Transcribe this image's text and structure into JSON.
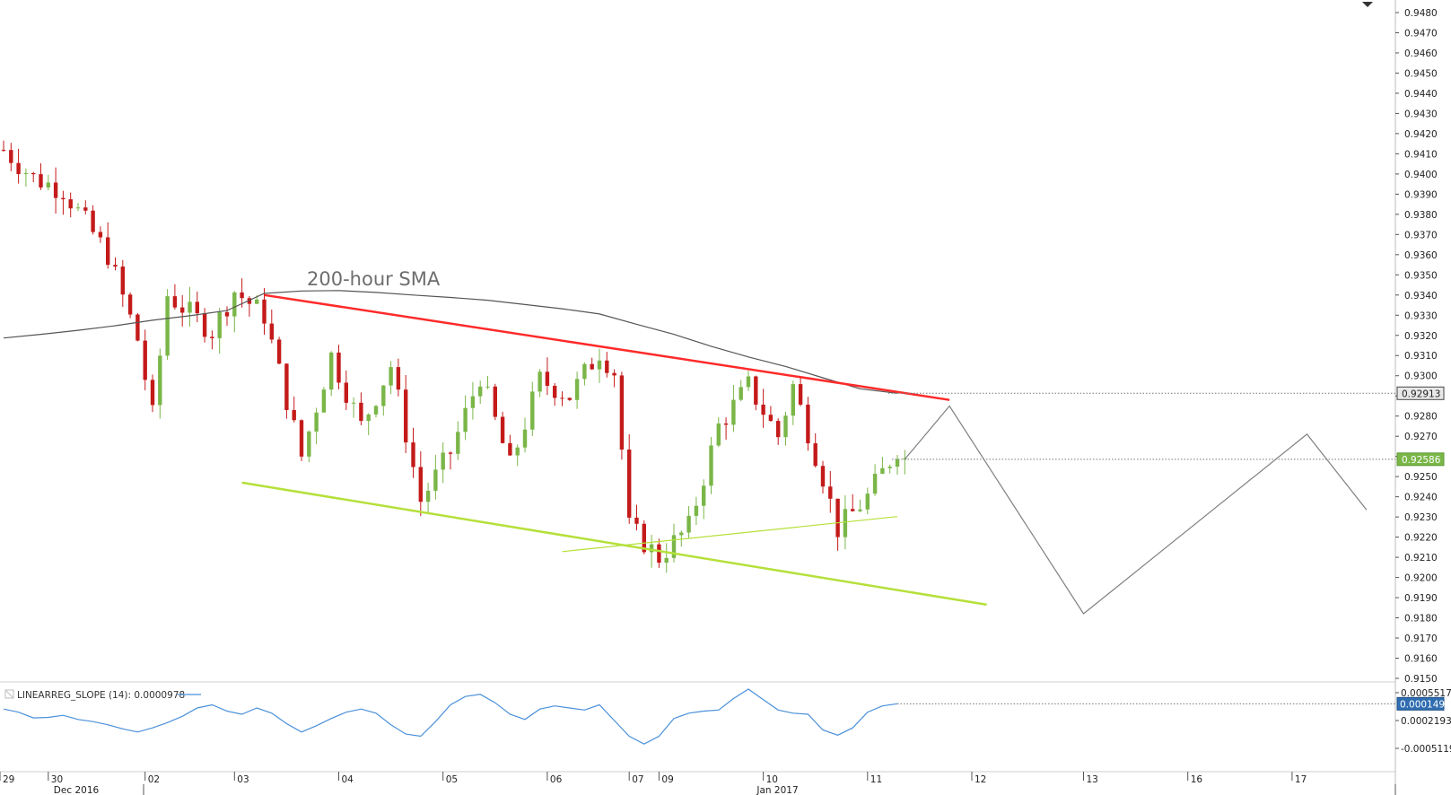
{
  "chart_data": {
    "type": "candlestick",
    "symbol": "",
    "price_axis": {
      "ylim": [
        0.9148,
        0.9488
      ],
      "ticks": [
        "0.9480",
        "0.9470",
        "0.9460",
        "0.9450",
        "0.9440",
        "0.9430",
        "0.9420",
        "0.9410",
        "0.9400",
        "0.9390",
        "0.9380",
        "0.9370",
        "0.9360",
        "0.9350",
        "0.9340",
        "0.9330",
        "0.9320",
        "0.9310",
        "0.9300",
        "0.9290",
        "0.9280",
        "0.9270",
        "0.9260",
        "0.9250",
        "0.9240",
        "0.9230",
        "0.9220",
        "0.9210",
        "0.9200",
        "0.9190",
        "0.9180",
        "0.9170",
        "0.9160",
        "0.9150"
      ],
      "tags": [
        {
          "text": "0.92913",
          "value": 0.92913,
          "color": "#e8e8e8",
          "text_color": "#222222"
        },
        {
          "text": "0.92586",
          "value": 0.92586,
          "color": "#7ab648",
          "text_color": "#ffffff"
        }
      ]
    },
    "time_axis": {
      "ticks": [
        {
          "label": "29",
          "bar": 0
        },
        {
          "label": "30",
          "bar": 6
        },
        {
          "label": "02",
          "bar": 19
        },
        {
          "label": "03",
          "bar": 31
        },
        {
          "label": "04",
          "bar": 45
        },
        {
          "label": "05",
          "bar": 59
        },
        {
          "label": "06",
          "bar": 73
        },
        {
          "label": "07",
          "bar": 84
        },
        {
          "label": "09",
          "bar": 88
        },
        {
          "label": "10",
          "bar": 102
        },
        {
          "label": "11",
          "bar": 116
        },
        {
          "label": "12",
          "bar": 130
        },
        {
          "label": "13",
          "bar": 145
        },
        {
          "label": "16",
          "bar": 159
        },
        {
          "label": "17",
          "bar": 173
        }
      ],
      "months": [
        {
          "label": "Dec 2016",
          "bar": 6
        },
        {
          "label": "Jan 2017",
          "bar": 98
        }
      ],
      "bar_spacing_bars_per_day": 14
    },
    "annotations": {
      "sma_label": "200-hour SMA"
    },
    "candles": [],
    "series": {
      "sma_200": [
        [
          0,
          0.93187
        ],
        [
          5,
          0.93205
        ],
        [
          10,
          0.93225
        ],
        [
          15,
          0.93248
        ],
        [
          20,
          0.93275
        ],
        [
          25,
          0.93297
        ],
        [
          30,
          0.93323
        ],
        [
          35,
          0.93408
        ],
        [
          40,
          0.9342
        ],
        [
          45,
          0.93422
        ],
        [
          50,
          0.93413
        ],
        [
          55,
          0.934
        ],
        [
          60,
          0.93388
        ],
        [
          65,
          0.93374
        ],
        [
          70,
          0.93353
        ],
        [
          75,
          0.93332
        ],
        [
          80,
          0.93306
        ],
        [
          85,
          0.93255
        ],
        [
          90,
          0.93205
        ],
        [
          95,
          0.93146
        ],
        [
          100,
          0.93093
        ],
        [
          105,
          0.93046
        ],
        [
          110,
          0.9299
        ],
        [
          115,
          0.92935
        ],
        [
          120,
          0.92913
        ]
      ],
      "resistance_line": [
        [
          35,
          0.934
        ],
        [
          127,
          0.9288
        ]
      ],
      "support_line": [
        [
          32,
          0.9247
        ],
        [
          132,
          0.91865
        ]
      ],
      "inner_support_line": [
        [
          75,
          0.92128
        ],
        [
          120,
          0.92302
        ]
      ],
      "projection": [
        [
          121,
          0.92586
        ],
        [
          127,
          0.9285
        ],
        [
          145,
          0.9182
        ],
        [
          175,
          0.9271
        ],
        [
          183,
          0.92335
        ]
      ]
    },
    "indicator": {
      "label": "LINEARREG_SLOPE (14): 0.0000978",
      "ticks": [
        "0.0005517",
        "0.0002193",
        "-0.0005119"
      ],
      "current_tag": "0.0001491",
      "ylim": [
        -0.0006,
        0.0006
      ],
      "values": [
        [
          0,
          0.00012
        ],
        [
          2,
          6e-05
        ],
        [
          4,
          -5e-05
        ],
        [
          6,
          -4e-05
        ],
        [
          8,
          0.0
        ],
        [
          10,
          -8e-05
        ],
        [
          12,
          -0.00012
        ],
        [
          14,
          -0.00018
        ],
        [
          16,
          -0.00026
        ],
        [
          18,
          -0.00032
        ],
        [
          20,
          -0.00024
        ],
        [
          22,
          -0.00014
        ],
        [
          24,
          -2e-05
        ],
        [
          26,
          0.00014
        ],
        [
          28,
          0.0002
        ],
        [
          30,
          8e-05
        ],
        [
          32,
          2e-05
        ],
        [
          34,
          0.00014
        ],
        [
          36,
          4e-05
        ],
        [
          38,
          -0.00016
        ],
        [
          40,
          -0.00032
        ],
        [
          42,
          -0.0002
        ],
        [
          44,
          -6e-05
        ],
        [
          46,
          6e-05
        ],
        [
          48,
          0.00012
        ],
        [
          50,
          4e-05
        ],
        [
          52,
          -0.00018
        ],
        [
          54,
          -0.00036
        ],
        [
          56,
          -0.0004
        ],
        [
          58,
          -0.00012
        ],
        [
          60,
          0.0002
        ],
        [
          62,
          0.00036
        ],
        [
          64,
          0.0004
        ],
        [
          66,
          0.00024
        ],
        [
          68,
          2e-05
        ],
        [
          70,
          -8e-05
        ],
        [
          72,
          0.00012
        ],
        [
          74,
          0.00018
        ],
        [
          76,
          0.00014
        ],
        [
          78,
          0.0001
        ],
        [
          80,
          0.0002
        ],
        [
          82,
          -0.0001
        ],
        [
          84,
          -0.0004
        ],
        [
          86,
          -0.00055
        ],
        [
          88,
          -0.0004
        ],
        [
          90,
          -6e-05
        ],
        [
          92,
          4e-05
        ],
        [
          94,
          8e-05
        ],
        [
          96,
          0.0001
        ],
        [
          98,
          0.00032
        ],
        [
          100,
          0.0005
        ],
        [
          102,
          0.0003
        ],
        [
          104,
          0.0001
        ],
        [
          106,
          4e-05
        ],
        [
          108,
          2e-05
        ],
        [
          110,
          -0.00028
        ],
        [
          112,
          -0.00038
        ],
        [
          114,
          -0.00024
        ],
        [
          116,
          6e-05
        ],
        [
          118,
          0.00018
        ],
        [
          120,
          0.00022
        ]
      ]
    }
  },
  "colors": {
    "bull": "#7ab648",
    "bear": "#c41a1a",
    "sma": "#555555",
    "resistance": "#ff2a2a",
    "support": "#b5e03a",
    "projection": "#7f7f7f",
    "indicator": "#4a90d9"
  }
}
